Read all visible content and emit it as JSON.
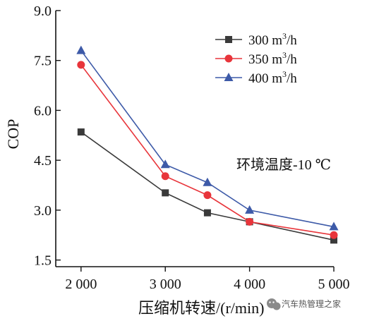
{
  "chart_data": {
    "type": "line",
    "xlabel": "压缩机转速/(r/min)",
    "ylabel": "COP",
    "x": [
      2000,
      3000,
      3500,
      4000,
      5000
    ],
    "xticks": [
      2000,
      3000,
      4000,
      5000
    ],
    "xtick_labels": [
      "2 000",
      "3 000",
      "4 000",
      "5 000"
    ],
    "xlim": [
      1700,
      5000
    ],
    "ylim": [
      1.3,
      9.0
    ],
    "yticks": [
      1.5,
      3.0,
      4.5,
      6.0,
      7.5,
      9.0
    ],
    "ytick_labels": [
      "1.5",
      "3.0",
      "4.5",
      "6.0",
      "7.5",
      "9.0"
    ],
    "series": [
      {
        "name_main": "300 m",
        "name_sup": "3",
        "name_tail": "/h",
        "marker": "square",
        "color": "#3a3a3a",
        "values": [
          5.35,
          3.52,
          2.92,
          2.65,
          2.1
        ]
      },
      {
        "name_main": "350 m",
        "name_sup": "3",
        "name_tail": "/h",
        "marker": "circle",
        "color": "#e8353b",
        "values": [
          7.37,
          4.02,
          3.45,
          2.65,
          2.25
        ]
      },
      {
        "name_main": "400 m",
        "name_sup": "3",
        "name_tail": "/h",
        "marker": "triangle",
        "color": "#3d5aa8",
        "values": [
          7.8,
          4.37,
          3.83,
          3.0,
          2.5
        ]
      }
    ],
    "annotation": "环境温度-10 ℃",
    "legend_position": "top-right",
    "grid": false
  },
  "watermark": {
    "text": "汽车热管理之家",
    "icon": "wechat-icon"
  }
}
